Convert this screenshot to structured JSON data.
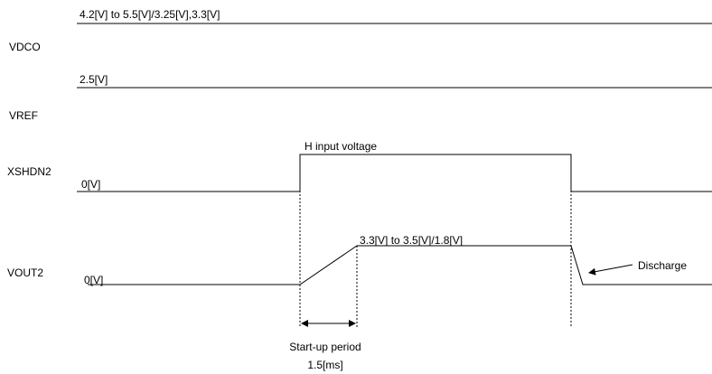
{
  "signals": [
    {
      "label": "VDCO",
      "level": "4.2[V] to 5.5[V]/3.25[V],3.3[V]"
    },
    {
      "label": "VREF",
      "level": "2.5[V]"
    },
    {
      "label": "XSHDN2",
      "low": "0[V]",
      "high": "H input voltage"
    },
    {
      "label": "VOUT2",
      "low": "0[V]",
      "high": "3.3[V] to 3.5[V]/1.8[V]",
      "note": "Discharge"
    }
  ],
  "startup": {
    "label": "Start-up period",
    "duration": "1.5[ms]"
  }
}
